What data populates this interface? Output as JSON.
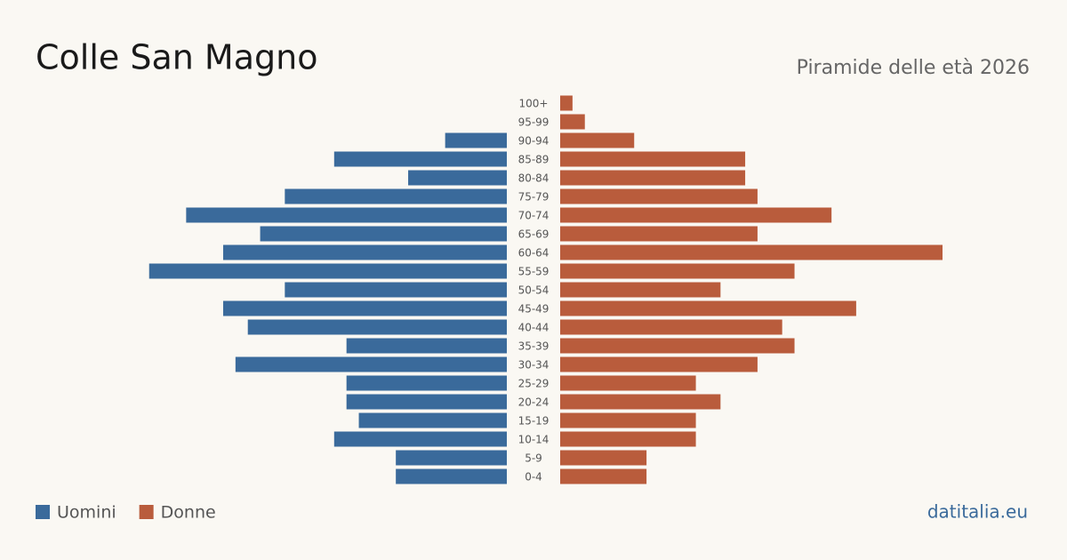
{
  "chart_data": {
    "type": "pyramid",
    "title": "Colle San Magno",
    "subtitle": "Piramide delle età 2026",
    "source": "datitalia.eu",
    "categories": [
      "100+",
      "95-99",
      "90-94",
      "85-89",
      "80-84",
      "75-79",
      "70-74",
      "65-69",
      "60-64",
      "55-59",
      "50-54",
      "45-49",
      "40-44",
      "35-39",
      "30-34",
      "25-29",
      "20-24",
      "15-19",
      "10-14",
      "5-9",
      "0-4"
    ],
    "series": [
      {
        "name": "Uomini",
        "color": "#3a6a9b",
        "values": [
          0,
          0,
          5,
          14,
          8,
          18,
          26,
          20,
          23,
          29,
          18,
          23,
          21,
          13,
          22,
          13,
          13,
          12,
          14,
          9,
          9
        ]
      },
      {
        "name": "Donne",
        "color": "#b95c3c",
        "values": [
          1,
          2,
          6,
          15,
          15,
          16,
          22,
          16,
          31,
          19,
          13,
          24,
          18,
          19,
          16,
          11,
          13,
          11,
          11,
          7,
          7
        ]
      }
    ]
  }
}
